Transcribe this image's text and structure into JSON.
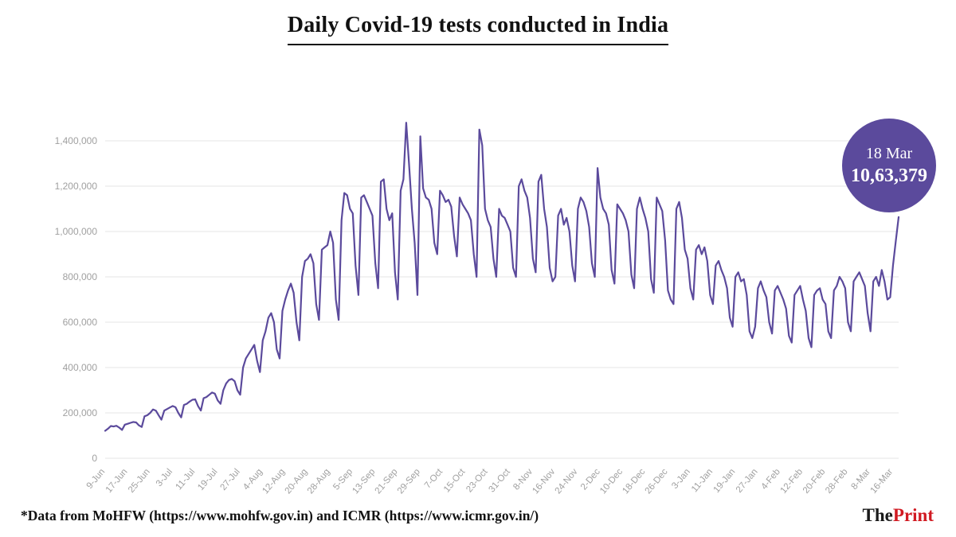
{
  "title": "Daily Covid-19 tests conducted in India",
  "badge": {
    "date": "18 Mar",
    "value": "10,63,379"
  },
  "footer": {
    "source_note": "*Data from MoHFW (https://www.mohfw.gov.in) and ICMR (https://www.icmr.gov.in/)"
  },
  "brand": {
    "the": "The",
    "print": "Print"
  },
  "colors": {
    "line": "#5b4a9c",
    "badge": "#5b4a9c",
    "grid": "#e4e4e4",
    "axis_text": "#a0a0a0",
    "brand_red": "#d11a22"
  },
  "chart_data": {
    "type": "line",
    "title": "Daily Covid-19 tests conducted in India",
    "grid": "horizontal-only",
    "legend": "none",
    "ylim": [
      0,
      1500000
    ],
    "y_ticks": [
      0,
      200000,
      400000,
      600000,
      800000,
      1000000,
      1200000,
      1400000
    ],
    "y_tick_labels": [
      "0",
      "200,000",
      "400,000",
      "600,000",
      "800,000",
      "1,000,000",
      "1,200,000",
      "1,400,000"
    ],
    "x_tick_labels": [
      "9-Jun",
      "17-Jun",
      "25-Jun",
      "3-Jul",
      "11-Jul",
      "19-Jul",
      "27-Jul",
      "4-Aug",
      "12-Aug",
      "20-Aug",
      "28-Aug",
      "5-Sep",
      "13-Sep",
      "21-Sep",
      "29-Sep",
      "7-Oct",
      "15-Oct",
      "23-Oct",
      "31-Oct",
      "8-Nov",
      "16-Nov",
      "24-Nov",
      "2-Dec",
      "10-Dec",
      "18-Dec",
      "26-Dec",
      "3-Jan",
      "11-Jan",
      "19-Jan",
      "27-Jan",
      "4-Feb",
      "12-Feb",
      "20-Feb",
      "28-Feb",
      "8-Mar",
      "16-Mar"
    ],
    "x_tick_day_indices": [
      0,
      8,
      16,
      24,
      32,
      40,
      48,
      56,
      64,
      72,
      80,
      88,
      96,
      104,
      112,
      120,
      128,
      136,
      144,
      152,
      160,
      168,
      176,
      184,
      192,
      200,
      208,
      216,
      224,
      232,
      240,
      248,
      256,
      264,
      272,
      280
    ],
    "annotation": {
      "label": "18 Mar",
      "value": 1063379
    },
    "series": [
      {
        "name": "Daily Covid-19 tests",
        "values": [
          121000,
          130000,
          142000,
          140000,
          143000,
          135000,
          125000,
          148000,
          152000,
          156000,
          160000,
          158000,
          145000,
          138000,
          185000,
          190000,
          200000,
          215000,
          210000,
          190000,
          170000,
          210000,
          217000,
          224000,
          230000,
          225000,
          200000,
          180000,
          235000,
          240000,
          250000,
          258000,
          260000,
          230000,
          210000,
          265000,
          270000,
          280000,
          290000,
          285000,
          255000,
          240000,
          300000,
          330000,
          345000,
          350000,
          340000,
          300000,
          280000,
          400000,
          440000,
          460000,
          480000,
          500000,
          430000,
          380000,
          520000,
          560000,
          620000,
          640000,
          600000,
          480000,
          440000,
          650000,
          700000,
          740000,
          770000,
          730000,
          600000,
          520000,
          800000,
          870000,
          880000,
          900000,
          860000,
          680000,
          610000,
          920000,
          930000,
          940000,
          1000000,
          950000,
          700000,
          610000,
          1050000,
          1170000,
          1160000,
          1100000,
          1080000,
          850000,
          720000,
          1150000,
          1160000,
          1130000,
          1100000,
          1070000,
          860000,
          750000,
          1220000,
          1230000,
          1100000,
          1050000,
          1080000,
          820000,
          700000,
          1180000,
          1230000,
          1480000,
          1300000,
          1100000,
          950000,
          720000,
          1420000,
          1190000,
          1150000,
          1140000,
          1100000,
          950000,
          900000,
          1180000,
          1160000,
          1130000,
          1140000,
          1110000,
          980000,
          890000,
          1150000,
          1120000,
          1100000,
          1080000,
          1050000,
          900000,
          800000,
          1450000,
          1380000,
          1100000,
          1050000,
          1020000,
          880000,
          800000,
          1100000,
          1070000,
          1060000,
          1030000,
          1000000,
          840000,
          800000,
          1200000,
          1230000,
          1180000,
          1150000,
          1060000,
          880000,
          820000,
          1220000,
          1250000,
          1100000,
          1020000,
          840000,
          780000,
          800000,
          1070000,
          1100000,
          1030000,
          1060000,
          1000000,
          850000,
          780000,
          1100000,
          1150000,
          1130000,
          1090000,
          1020000,
          860000,
          800000,
          1280000,
          1150000,
          1100000,
          1080000,
          1030000,
          830000,
          770000,
          1120000,
          1100000,
          1080000,
          1050000,
          1000000,
          810000,
          750000,
          1100000,
          1150000,
          1100000,
          1060000,
          1000000,
          790000,
          730000,
          1150000,
          1120000,
          1090000,
          960000,
          740000,
          700000,
          680000,
          1100000,
          1130000,
          1060000,
          920000,
          880000,
          750000,
          700000,
          920000,
          940000,
          900000,
          930000,
          870000,
          720000,
          680000,
          850000,
          870000,
          830000,
          800000,
          750000,
          620000,
          580000,
          800000,
          820000,
          780000,
          790000,
          720000,
          560000,
          530000,
          580000,
          750000,
          780000,
          740000,
          710000,
          600000,
          550000,
          740000,
          760000,
          730000,
          700000,
          660000,
          540000,
          510000,
          720000,
          740000,
          760000,
          700000,
          650000,
          530000,
          490000,
          720000,
          740000,
          750000,
          700000,
          680000,
          560000,
          530000,
          740000,
          760000,
          800000,
          780000,
          750000,
          600000,
          560000,
          780000,
          800000,
          820000,
          790000,
          760000,
          640000,
          560000,
          780000,
          800000,
          760000,
          830000,
          780000,
          700000,
          710000,
          850000,
          960000,
          1063379
        ]
      }
    ]
  }
}
